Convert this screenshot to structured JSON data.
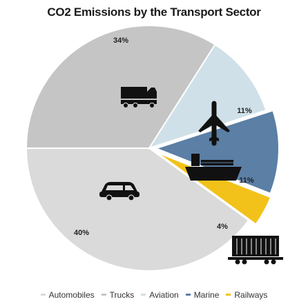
{
  "chart_data": {
    "type": "pie",
    "title": "CO2 Emissions by the Transport Sector",
    "categories": [
      "Automobiles",
      "Trucks",
      "Aviation",
      "Marine",
      "Railways"
    ],
    "values": [
      40,
      34,
      11,
      11,
      4
    ],
    "labels": [
      "40%",
      "34%",
      "11%",
      "11%",
      "4%"
    ],
    "colors": [
      "#dadada",
      "#c5c5c5",
      "#cfe0e8",
      "#5b7fa5",
      "#f2c21b"
    ],
    "icons": [
      "car-icon",
      "truck-icon",
      "airplane-icon",
      "ship-icon",
      "train-icon"
    ],
    "legend_position": "bottom"
  }
}
